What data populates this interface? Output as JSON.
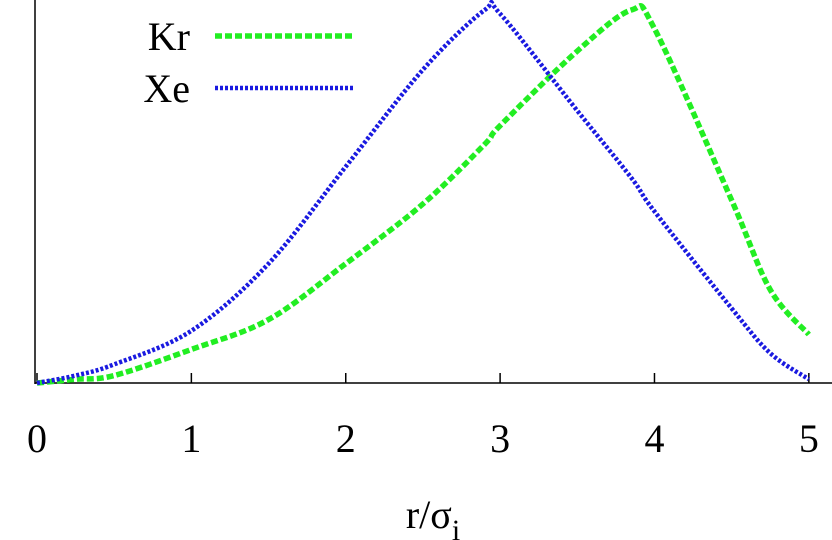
{
  "chart_data": {
    "type": "line",
    "x_label": "r/σ",
    "x_label_subscript": "i",
    "x": [
      0,
      0.25,
      0.5,
      1,
      1.5,
      2,
      2.5,
      2.9,
      3,
      3.5,
      3.85,
      4,
      4.5,
      4.75,
      5
    ],
    "series": [
      {
        "name": "Kr",
        "color": "#22ee22",
        "values": [
          0,
          0.01,
          0.02,
          0.09,
          0.17,
          0.32,
          0.48,
          0.64,
          0.69,
          0.89,
          1.0,
          0.95,
          0.49,
          0.25,
          0.13
        ]
      },
      {
        "name": "Xe",
        "color": "#1a1ae0",
        "values": [
          0,
          0.02,
          0.05,
          0.14,
          0.32,
          0.58,
          0.84,
          1.0,
          0.99,
          0.73,
          0.55,
          0.46,
          0.2,
          0.08,
          0.01
        ]
      }
    ],
    "xlim": [
      0,
      5.15
    ],
    "ylim": [
      0,
      1
    ],
    "xticks": [
      0,
      1,
      2,
      3,
      4,
      5
    ],
    "legend": "top-left"
  }
}
